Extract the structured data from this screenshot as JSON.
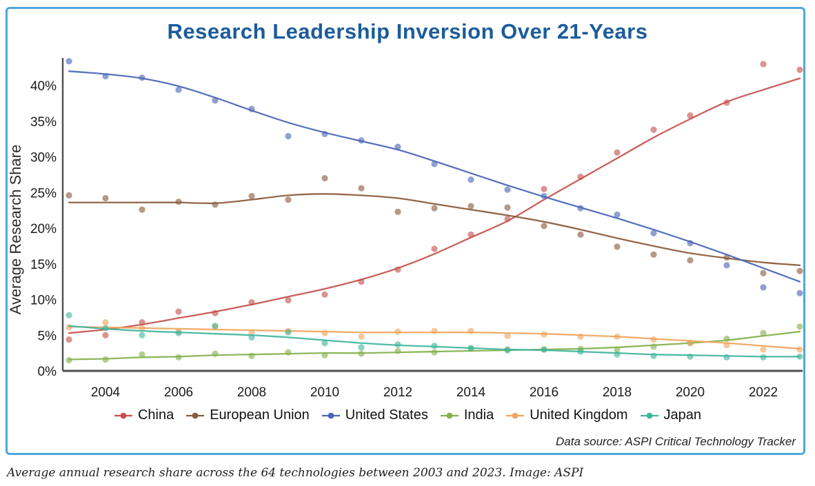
{
  "frame": {
    "border_color": "#4da7d8"
  },
  "source_note": "Data source: ASPI Critical Technology Tracker",
  "caption": "Average annual research share across the 64 technologies between 2003 and 2023. Image: ASPI",
  "chart_data": {
    "type": "scatter",
    "title": "Research Leadership Inversion Over 21-Years",
    "xlabel": "",
    "ylabel": "Average Research Share",
    "x": [
      2003,
      2004,
      2005,
      2006,
      2007,
      2008,
      2009,
      2010,
      2011,
      2012,
      2013,
      2014,
      2015,
      2016,
      2017,
      2018,
      2019,
      2020,
      2021,
      2022,
      2023
    ],
    "xlim": [
      2003,
      2023
    ],
    "ylim": [
      0,
      44
    ],
    "grid": false,
    "legend_position": "bottom",
    "x_ticks": [
      {
        "value": 2004,
        "label": "2004"
      },
      {
        "value": 2006,
        "label": "2006"
      },
      {
        "value": 2008,
        "label": "2008"
      },
      {
        "value": 2010,
        "label": "2010"
      },
      {
        "value": 2012,
        "label": "2012"
      },
      {
        "value": 2014,
        "label": "2014"
      },
      {
        "value": 2016,
        "label": "2016"
      },
      {
        "value": 2018,
        "label": "2018"
      },
      {
        "value": 2020,
        "label": "2020"
      },
      {
        "value": 2022,
        "label": "2022"
      }
    ],
    "y_ticks": [
      {
        "value": 0,
        "label": "0%"
      },
      {
        "value": 5,
        "label": "5%"
      },
      {
        "value": 10,
        "label": "10%"
      },
      {
        "value": 15,
        "label": "15%"
      },
      {
        "value": 20,
        "label": "20%"
      },
      {
        "value": 25,
        "label": "25%"
      },
      {
        "value": 30,
        "label": "30%"
      },
      {
        "value": 35,
        "label": "35%"
      },
      {
        "value": 40,
        "label": "40%"
      }
    ],
    "series": [
      {
        "name": "China",
        "color": "#c4504d",
        "points": [
          4.4,
          5.0,
          6.8,
          8.3,
          8.1,
          9.6,
          9.9,
          10.7,
          12.5,
          14.2,
          17.1,
          19.1,
          21.3,
          25.5,
          27.2,
          30.6,
          33.8,
          35.8,
          37.6,
          43.0,
          42.2
        ],
        "trend": [
          5.3,
          5.8,
          6.5,
          7.4,
          8.3,
          9.3,
          10.4,
          11.5,
          12.8,
          14.4,
          16.4,
          18.7,
          21.0,
          24.0,
          26.9,
          29.8,
          32.7,
          35.3,
          37.7,
          39.4,
          41.0
        ]
      },
      {
        "name": "European Union",
        "color": "#8a5a3b",
        "points": [
          24.6,
          24.2,
          22.6,
          23.7,
          23.3,
          24.5,
          24.0,
          27.0,
          25.6,
          22.3,
          22.8,
          23.1,
          22.9,
          20.3,
          19.1,
          17.4,
          16.3,
          15.5,
          15.9,
          13.7,
          14.0
        ],
        "trend": [
          23.6,
          23.6,
          23.6,
          23.6,
          23.5,
          24.0,
          24.6,
          24.8,
          24.6,
          24.2,
          23.4,
          22.6,
          21.8,
          20.9,
          19.8,
          18.6,
          17.5,
          16.5,
          15.8,
          15.2,
          14.8
        ]
      },
      {
        "name": "United States",
        "color": "#4a66b5",
        "points": [
          43.4,
          41.3,
          41.1,
          39.4,
          37.9,
          36.7,
          32.9,
          33.2,
          32.3,
          31.4,
          29.0,
          26.8,
          25.4,
          24.5,
          22.8,
          21.9,
          19.3,
          17.9,
          14.8,
          11.7,
          10.9
        ],
        "trend": [
          42.0,
          41.6,
          41.0,
          39.9,
          38.3,
          36.5,
          34.8,
          33.4,
          32.2,
          31.0,
          29.4,
          27.7,
          26.0,
          24.4,
          22.9,
          21.4,
          19.8,
          18.1,
          16.3,
          14.4,
          12.5
        ]
      },
      {
        "name": "India",
        "color": "#84b04c",
        "points": [
          1.5,
          1.6,
          2.3,
          1.9,
          2.4,
          2.1,
          2.6,
          2.2,
          2.4,
          2.8,
          2.6,
          3.1,
          3.0,
          3.0,
          3.1,
          3.0,
          3.4,
          3.9,
          4.5,
          5.3,
          6.2
        ],
        "trend": [
          1.6,
          1.7,
          1.9,
          2.0,
          2.2,
          2.3,
          2.4,
          2.5,
          2.5,
          2.6,
          2.7,
          2.8,
          2.9,
          3.0,
          3.1,
          3.3,
          3.6,
          3.9,
          4.3,
          4.9,
          5.5
        ]
      },
      {
        "name": "United Kingdom",
        "color": "#efa55d",
        "points": [
          6.1,
          6.8,
          6.0,
          5.5,
          6.2,
          5.4,
          5.6,
          5.3,
          4.8,
          5.5,
          5.6,
          5.6,
          4.9,
          5.1,
          4.8,
          4.8,
          4.4,
          3.9,
          3.6,
          3.0,
          3.0
        ],
        "trend": [
          6.2,
          6.1,
          6.0,
          5.9,
          5.8,
          5.7,
          5.6,
          5.5,
          5.4,
          5.4,
          5.4,
          5.4,
          5.3,
          5.2,
          5.0,
          4.8,
          4.5,
          4.2,
          3.9,
          3.5,
          3.1
        ]
      },
      {
        "name": "Japan",
        "color": "#40b59c",
        "points": [
          7.8,
          6.0,
          5.0,
          5.3,
          6.3,
          4.7,
          5.4,
          3.9,
          3.3,
          3.7,
          3.5,
          3.2,
          2.9,
          3.0,
          2.7,
          2.3,
          2.1,
          2.0,
          1.9,
          1.9,
          2.0
        ],
        "trend": [
          6.3,
          5.9,
          5.6,
          5.4,
          5.2,
          5.0,
          4.7,
          4.3,
          3.9,
          3.6,
          3.4,
          3.2,
          3.0,
          2.9,
          2.7,
          2.5,
          2.3,
          2.2,
          2.1,
          2.0,
          2.0
        ]
      }
    ]
  }
}
